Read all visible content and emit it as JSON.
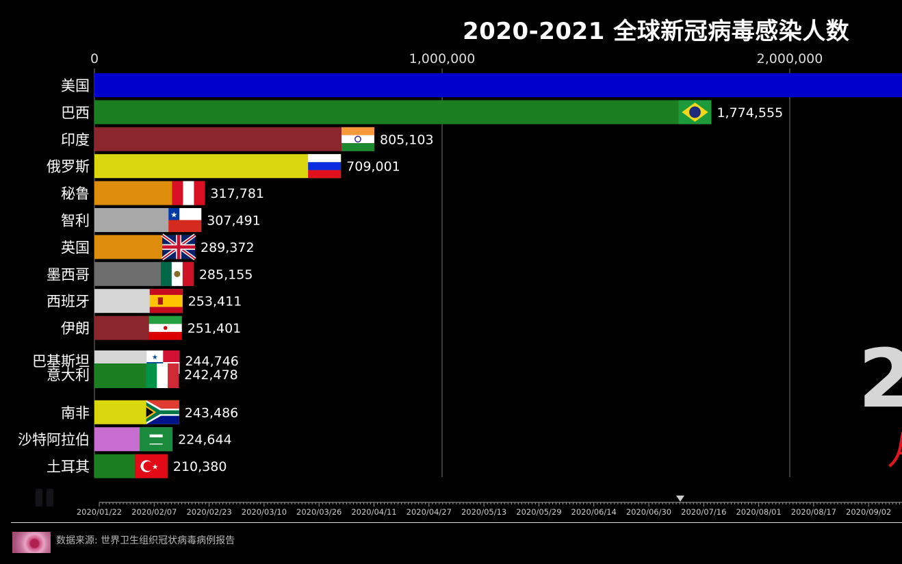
{
  "title": "2020-2021 全球新冠病毒感染人数",
  "chart_data": {
    "type": "bar",
    "orientation": "horizontal",
    "title": "2020-2021 全球新冠病毒感染人数",
    "xlim": [
      0,
      2300000
    ],
    "x_ticks": [
      0,
      1000000,
      2000000
    ],
    "x_tick_labels": [
      "0",
      "1,000,000",
      "2,000,000"
    ],
    "grid": "vertical",
    "series": [
      {
        "name": "美国",
        "value": null,
        "value_label": "",
        "color": "#0000cc",
        "flag": "usa",
        "rank": 0
      },
      {
        "name": "巴西",
        "value": 1774555,
        "value_label": "1,774,555",
        "color": "#1b7f21",
        "flag": "brazil",
        "rank": 1
      },
      {
        "name": "印度",
        "value": 805103,
        "value_label": "805,103",
        "color": "#8b262c",
        "flag": "india",
        "rank": 2
      },
      {
        "name": "俄罗斯",
        "value": 709001,
        "value_label": "709,001",
        "color": "#dbd70e",
        "flag": "russia",
        "rank": 3
      },
      {
        "name": "秘鲁",
        "value": 317781,
        "value_label": "317,781",
        "color": "#dd8c0b",
        "flag": "peru",
        "rank": 4
      },
      {
        "name": "智利",
        "value": 307491,
        "value_label": "307,491",
        "color": "#a8a8a8",
        "flag": "chile",
        "rank": 5
      },
      {
        "name": "英国",
        "value": 289372,
        "value_label": "289,372",
        "color": "#dd8c0b",
        "flag": "uk",
        "rank": 6
      },
      {
        "name": "墨西哥",
        "value": 285155,
        "value_label": "285,155",
        "color": "#6e6e6e",
        "flag": "mexico",
        "rank": 7
      },
      {
        "name": "西班牙",
        "value": 253411,
        "value_label": "253,411",
        "color": "#d5d5d5",
        "flag": "spain",
        "rank": 8
      },
      {
        "name": "伊朗",
        "value": 251401,
        "value_label": "251,401",
        "color": "#8b262c",
        "flag": "iran",
        "rank": 9
      },
      {
        "name": "巴基斯坦",
        "value": 244746,
        "value_label": "244,746",
        "color": "#d5d5d5",
        "flag": "panama",
        "rank": 10.2
      },
      {
        "name": "意大利",
        "value": 242478,
        "value_label": "242,478",
        "color": "#1b7f21",
        "flag": "italy",
        "rank": 10.7
      },
      {
        "name": "南非",
        "value": 243486,
        "value_label": "243,486",
        "color": "#dbd70e",
        "flag": "southafrica",
        "rank": 12
      },
      {
        "name": "沙特阿拉伯",
        "value": 224644,
        "value_label": "224,644",
        "color": "#c86ed0",
        "flag": "saudi",
        "rank": 13
      },
      {
        "name": "土耳其",
        "value": 210380,
        "value_label": "210,380",
        "color": "#1b7f21",
        "flag": "turkey",
        "rank": 14
      }
    ],
    "timeline": {
      "ticks": [
        "2020/01/22",
        "2020/02/07",
        "2020/02/23",
        "2020/03/10",
        "2020/03/26",
        "2020/04/11",
        "2020/04/27",
        "2020/05/13",
        "2020/05/29",
        "2020/06/14",
        "2020/06/30",
        "2020/07/16",
        "2020/08/01",
        "2020/08/17",
        "2020/09/02"
      ],
      "current_marker_between": [
        "2020/06/30",
        "2020/07/16"
      ]
    }
  },
  "overlay": {
    "big_year_partial": "2",
    "big_sub_partial": "月"
  },
  "footer": {
    "source": "数据来源: 世界卫生组织冠状病毒病例报告"
  },
  "controls": {
    "pause_icon": "pause-icon"
  }
}
